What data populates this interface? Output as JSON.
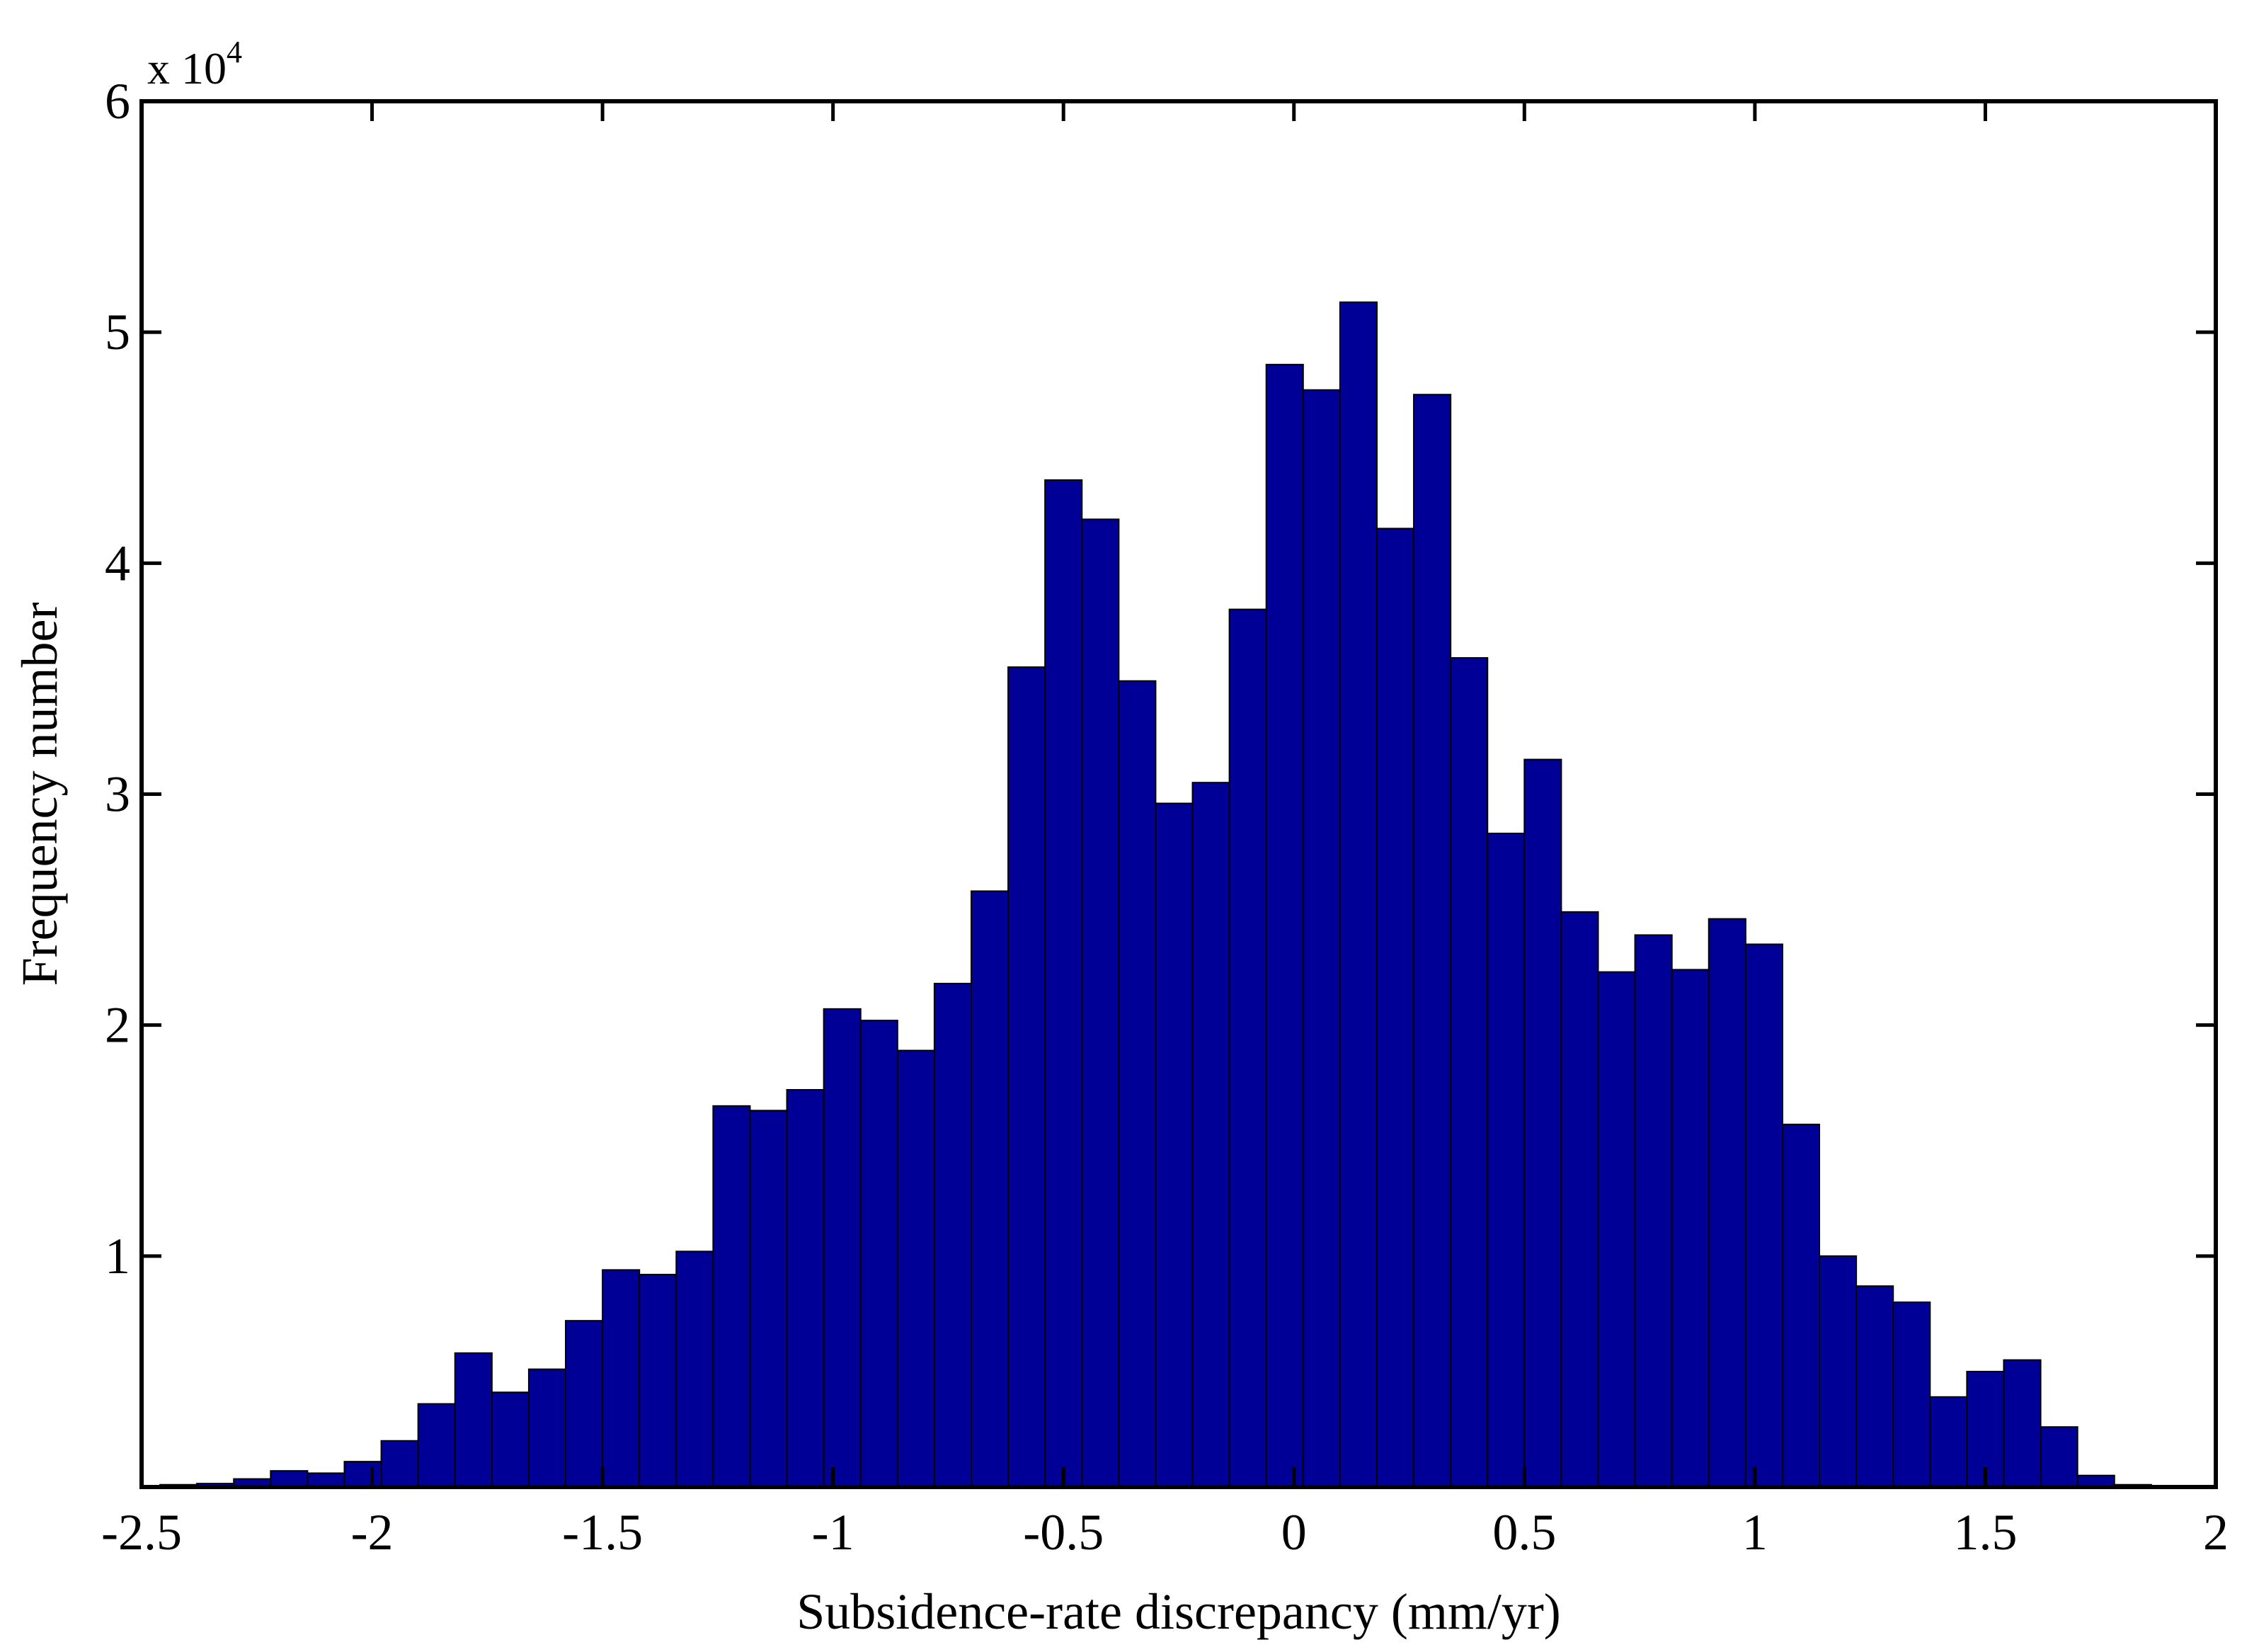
{
  "chart_data": {
    "type": "bar",
    "histogram": true,
    "xlabel": "Subsidence-rate discrepancy (mm/yr)",
    "ylabel": "Frequency number",
    "xlim": [
      -2.5,
      2
    ],
    "ylim": [
      0,
      60000
    ],
    "y_multiplier": {
      "base": "x 10",
      "exponent": "4"
    },
    "grid": false,
    "bar_color": "#000096",
    "x_ticks": [
      {
        "value": -2.5,
        "label": "-2.5"
      },
      {
        "value": -2,
        "label": "-2"
      },
      {
        "value": -1.5,
        "label": "-1.5"
      },
      {
        "value": -1,
        "label": "-1"
      },
      {
        "value": -0.5,
        "label": "-0.5"
      },
      {
        "value": 0,
        "label": "0"
      },
      {
        "value": 0.5,
        "label": "0.5"
      },
      {
        "value": 1,
        "label": "1"
      },
      {
        "value": 1.5,
        "label": "1.5"
      },
      {
        "value": 2,
        "label": "2"
      }
    ],
    "y_ticks": [
      {
        "value": 10000,
        "label": "1"
      },
      {
        "value": 20000,
        "label": "2"
      },
      {
        "value": 30000,
        "label": "3"
      },
      {
        "value": 40000,
        "label": "4"
      },
      {
        "value": 50000,
        "label": "5"
      },
      {
        "value": 60000,
        "label": "6"
      }
    ],
    "bin_width": 0.08,
    "bin_start": -2.46,
    "values": [
      100,
      150,
      350,
      700,
      600,
      1100,
      2000,
      3600,
      5800,
      4100,
      5100,
      7200,
      9400,
      9200,
      10200,
      16500,
      16300,
      17200,
      20700,
      20200,
      18900,
      21800,
      25800,
      35500,
      43600,
      41900,
      34900,
      29600,
      30500,
      38000,
      48600,
      47500,
      51300,
      41500,
      47300,
      35900,
      28300,
      31500,
      24900,
      22300,
      23900,
      22400,
      24600,
      23500,
      15700,
      10000,
      8700,
      8000,
      3900,
      5000,
      5500,
      2600,
      500,
      100
    ]
  }
}
